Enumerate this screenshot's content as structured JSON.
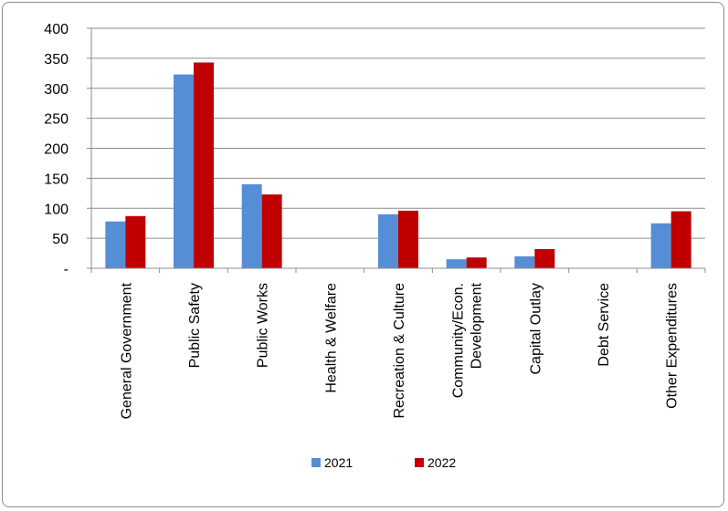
{
  "chart_data": {
    "type": "bar",
    "categories": [
      "General Government",
      "Public Safety",
      "Public Works",
      "Health & Welfare",
      "Recreation & Culture",
      [
        "Community/Econ.",
        "Development"
      ],
      "Capital Outlay",
      "Debt Service",
      "Other Expenditures"
    ],
    "series": [
      {
        "name": "2021",
        "color": "#558ED5",
        "values": [
          78,
          323,
          140,
          0,
          90,
          15,
          20,
          0,
          75
        ]
      },
      {
        "name": "2022",
        "color": "#C00000",
        "values": [
          87,
          343,
          123,
          0,
          96,
          18,
          32,
          0,
          95
        ]
      }
    ],
    "y_ticks": [
      {
        "value": 0,
        "label": "-"
      },
      {
        "value": 50,
        "label": "50"
      },
      {
        "value": 100,
        "label": "100"
      },
      {
        "value": 150,
        "label": "150"
      },
      {
        "value": 200,
        "label": "200"
      },
      {
        "value": 250,
        "label": "250"
      },
      {
        "value": 300,
        "label": "300"
      },
      {
        "value": 350,
        "label": "350"
      },
      {
        "value": 400,
        "label": "400"
      }
    ],
    "ylim": [
      0,
      400
    ],
    "grid": true,
    "legend_position": "bottom",
    "title": "",
    "xlabel": "",
    "ylabel": ""
  }
}
